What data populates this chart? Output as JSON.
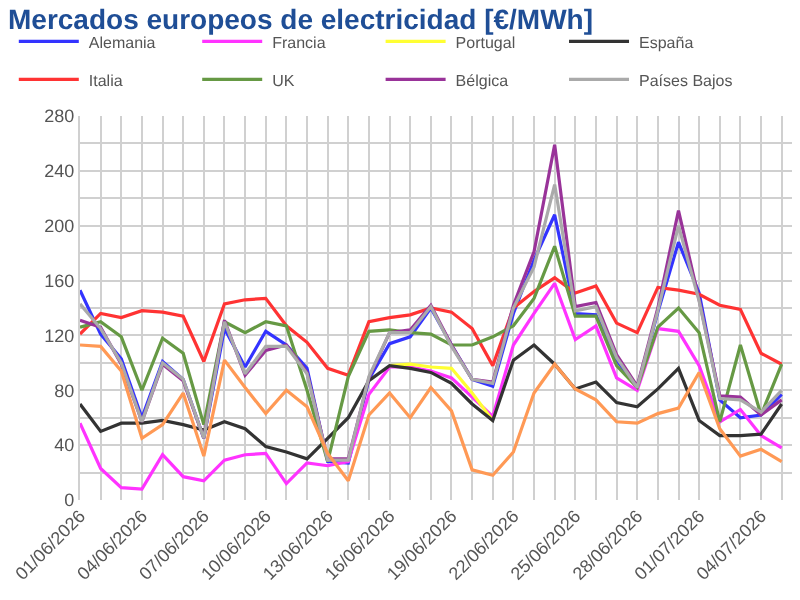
{
  "chart_data": {
    "type": "line",
    "title": "Mercados europeos de electricidad [€/MWh]",
    "x": [
      "2026-06-01",
      "2026-06-02",
      "2026-06-03",
      "2026-06-04",
      "2026-06-05",
      "2026-06-06",
      "2026-06-07",
      "2026-06-08",
      "2026-06-09",
      "2026-06-10",
      "2026-06-11",
      "2026-06-12",
      "2026-06-13",
      "2026-06-14",
      "2026-06-15",
      "2026-06-16",
      "2026-06-17",
      "2026-06-18",
      "2026-06-19",
      "2026-06-20",
      "2026-06-21",
      "2026-06-22",
      "2026-06-23",
      "2026-06-24",
      "2026-06-25",
      "2026-06-26",
      "2026-06-27",
      "2026-06-28",
      "2026-06-29",
      "2026-06-30",
      "2026-07-01",
      "2026-07-02",
      "2026-07-03",
      "2026-07-04",
      "2026-07-05"
    ],
    "series": [
      {
        "name": "Alemania",
        "color": "#3333ff",
        "values": [
          153,
          121,
          103,
          60,
          101,
          88,
          45,
          125,
          97,
          123,
          113,
          96,
          28,
          27,
          88,
          114,
          119,
          140,
          113,
          88,
          83,
          136,
          175,
          208,
          136,
          135,
          102,
          82,
          137,
          188,
          151,
          73,
          60,
          62,
          77
        ]
      },
      {
        "name": "Francia",
        "color": "#ff33ff",
        "values": [
          56,
          23,
          9,
          8,
          33,
          17,
          14,
          29,
          33,
          34,
          12,
          27,
          25,
          28,
          77,
          97,
          97,
          94,
          89,
          75,
          61,
          113,
          136,
          158,
          117,
          127,
          89,
          80,
          125,
          123,
          98,
          57,
          66,
          47,
          38
        ]
      },
      {
        "name": "Portugal",
        "color": "#ffff33",
        "values": [
          null,
          null,
          null,
          null,
          null,
          null,
          null,
          null,
          null,
          null,
          null,
          null,
          null,
          null,
          null,
          98,
          99,
          97,
          96,
          78,
          58,
          null,
          null,
          null,
          null,
          null,
          null,
          null,
          null,
          null,
          null,
          null,
          null,
          null,
          null
        ]
      },
      {
        "name": "España",
        "color": "#333333",
        "values": [
          70,
          50,
          56,
          56,
          58,
          55,
          51,
          57,
          52,
          39,
          35,
          30,
          45,
          60,
          87,
          98,
          96,
          93,
          85,
          70,
          58,
          102,
          113,
          99,
          81,
          86,
          71,
          68,
          81,
          96,
          58,
          47,
          47,
          48,
          70
        ]
      },
      {
        "name": "Italia",
        "color": "#ff3333",
        "values": [
          121,
          136,
          133,
          138,
          137,
          134,
          101,
          143,
          146,
          147,
          127,
          115,
          96,
          91,
          130,
          133,
          135,
          140,
          137,
          125,
          98,
          140,
          152,
          162,
          151,
          156,
          129,
          122,
          155,
          153,
          150,
          142,
          139,
          107,
          99
        ]
      },
      {
        "name": "UK",
        "color": "#669944",
        "values": [
          126,
          130,
          119,
          80,
          118,
          107,
          55,
          130,
          122,
          130,
          127,
          80,
          28,
          90,
          123,
          124,
          122,
          121,
          113,
          113,
          119,
          127,
          147,
          185,
          134,
          134,
          98,
          82,
          126,
          140,
          122,
          57,
          113,
          62,
          99
        ]
      },
      {
        "name": "Bélgica",
        "color": "#993399",
        "values": [
          131,
          126,
          99,
          57,
          99,
          87,
          45,
          131,
          91,
          109,
          113,
          93,
          30,
          30,
          89,
          122,
          124,
          142,
          113,
          88,
          86,
          142,
          181,
          259,
          141,
          144,
          106,
          83,
          140,
          211,
          146,
          76,
          75,
          62,
          73
        ]
      },
      {
        "name": "Países Bajos",
        "color": "#aaaaaa",
        "values": [
          143,
          125,
          100,
          57,
          100,
          88,
          45,
          130,
          92,
          112,
          112,
          92,
          29,
          29,
          90,
          122,
          122,
          141,
          112,
          88,
          85,
          140,
          170,
          230,
          138,
          141,
          104,
          82,
          138,
          200,
          145,
          74,
          73,
          64,
          80
        ]
      },
      {
        "color": "#ff9955",
        "values": [
          113,
          112,
          94,
          45,
          55,
          78,
          32,
          102,
          82,
          63,
          80,
          68,
          34,
          14,
          62,
          78,
          60,
          82,
          65,
          22,
          18,
          35,
          78,
          99,
          81,
          73,
          57,
          56,
          63,
          67,
          93,
          52,
          32,
          37,
          28
        ]
      }
    ],
    "xlim": [
      "2026-06-01",
      "2026-07-05T12:00"
    ],
    "xticks": [
      {
        "value": "2026-06-01",
        "label": "01/06/2026"
      },
      {
        "value": "2026-06-02",
        "label": null
      },
      {
        "value": "2026-06-03",
        "label": null
      },
      {
        "value": "2026-06-04",
        "label": "04/06/2026"
      },
      {
        "value": "2026-06-05",
        "label": null
      },
      {
        "value": "2026-06-06",
        "label": null
      },
      {
        "value": "2026-06-07",
        "label": "07/06/2026"
      },
      {
        "value": "2026-06-08",
        "label": null
      },
      {
        "value": "2026-06-09",
        "label": null
      },
      {
        "value": "2026-06-10",
        "label": "10/06/2026"
      },
      {
        "value": "2026-06-11",
        "label": null
      },
      {
        "value": "2026-06-12",
        "label": null
      },
      {
        "value": "2026-06-13",
        "label": "13/06/2026"
      },
      {
        "value": "2026-06-14",
        "label": null
      },
      {
        "value": "2026-06-15",
        "label": null
      },
      {
        "value": "2026-06-16",
        "label": "16/06/2026"
      },
      {
        "value": "2026-06-17",
        "label": null
      },
      {
        "value": "2026-06-18",
        "label": null
      },
      {
        "value": "2026-06-19",
        "label": "19/06/2026"
      },
      {
        "value": "2026-06-20",
        "label": null
      },
      {
        "value": "2026-06-21",
        "label": null
      },
      {
        "value": "2026-06-22",
        "label": "22/06/2026"
      },
      {
        "value": "2026-06-23",
        "label": null
      },
      {
        "value": "2026-06-24",
        "label": null
      },
      {
        "value": "2026-06-25",
        "label": "25/06/2026"
      },
      {
        "value": "2026-06-26",
        "label": null
      },
      {
        "value": "2026-06-27",
        "label": null
      },
      {
        "value": "2026-06-28",
        "label": "28/06/2026"
      },
      {
        "value": "2026-06-29",
        "label": null
      },
      {
        "value": "2026-06-30",
        "label": null
      },
      {
        "value": "2026-07-01",
        "label": "01/07/2026"
      },
      {
        "value": "2026-07-02",
        "label": null
      },
      {
        "value": "2026-07-03",
        "label": null
      },
      {
        "value": "2026-07-04",
        "label": "04/07/2026"
      },
      {
        "value": "2026-07-05",
        "label": null
      }
    ],
    "ylim": [
      0,
      280
    ],
    "yticks": [
      0,
      {
        "value": 20,
        "label": null
      },
      40,
      {
        "value": 60,
        "label": null
      },
      80,
      {
        "value": 100,
        "label": null
      },
      120,
      {
        "value": 140,
        "label": null
      },
      160,
      {
        "value": 180,
        "label": null
      },
      200,
      {
        "value": 220,
        "label": null
      },
      240,
      {
        "value": 260,
        "label": null
      },
      280
    ],
    "grid": true,
    "legend": "top",
    "marker": "none",
    "line_style": "solid"
  }
}
